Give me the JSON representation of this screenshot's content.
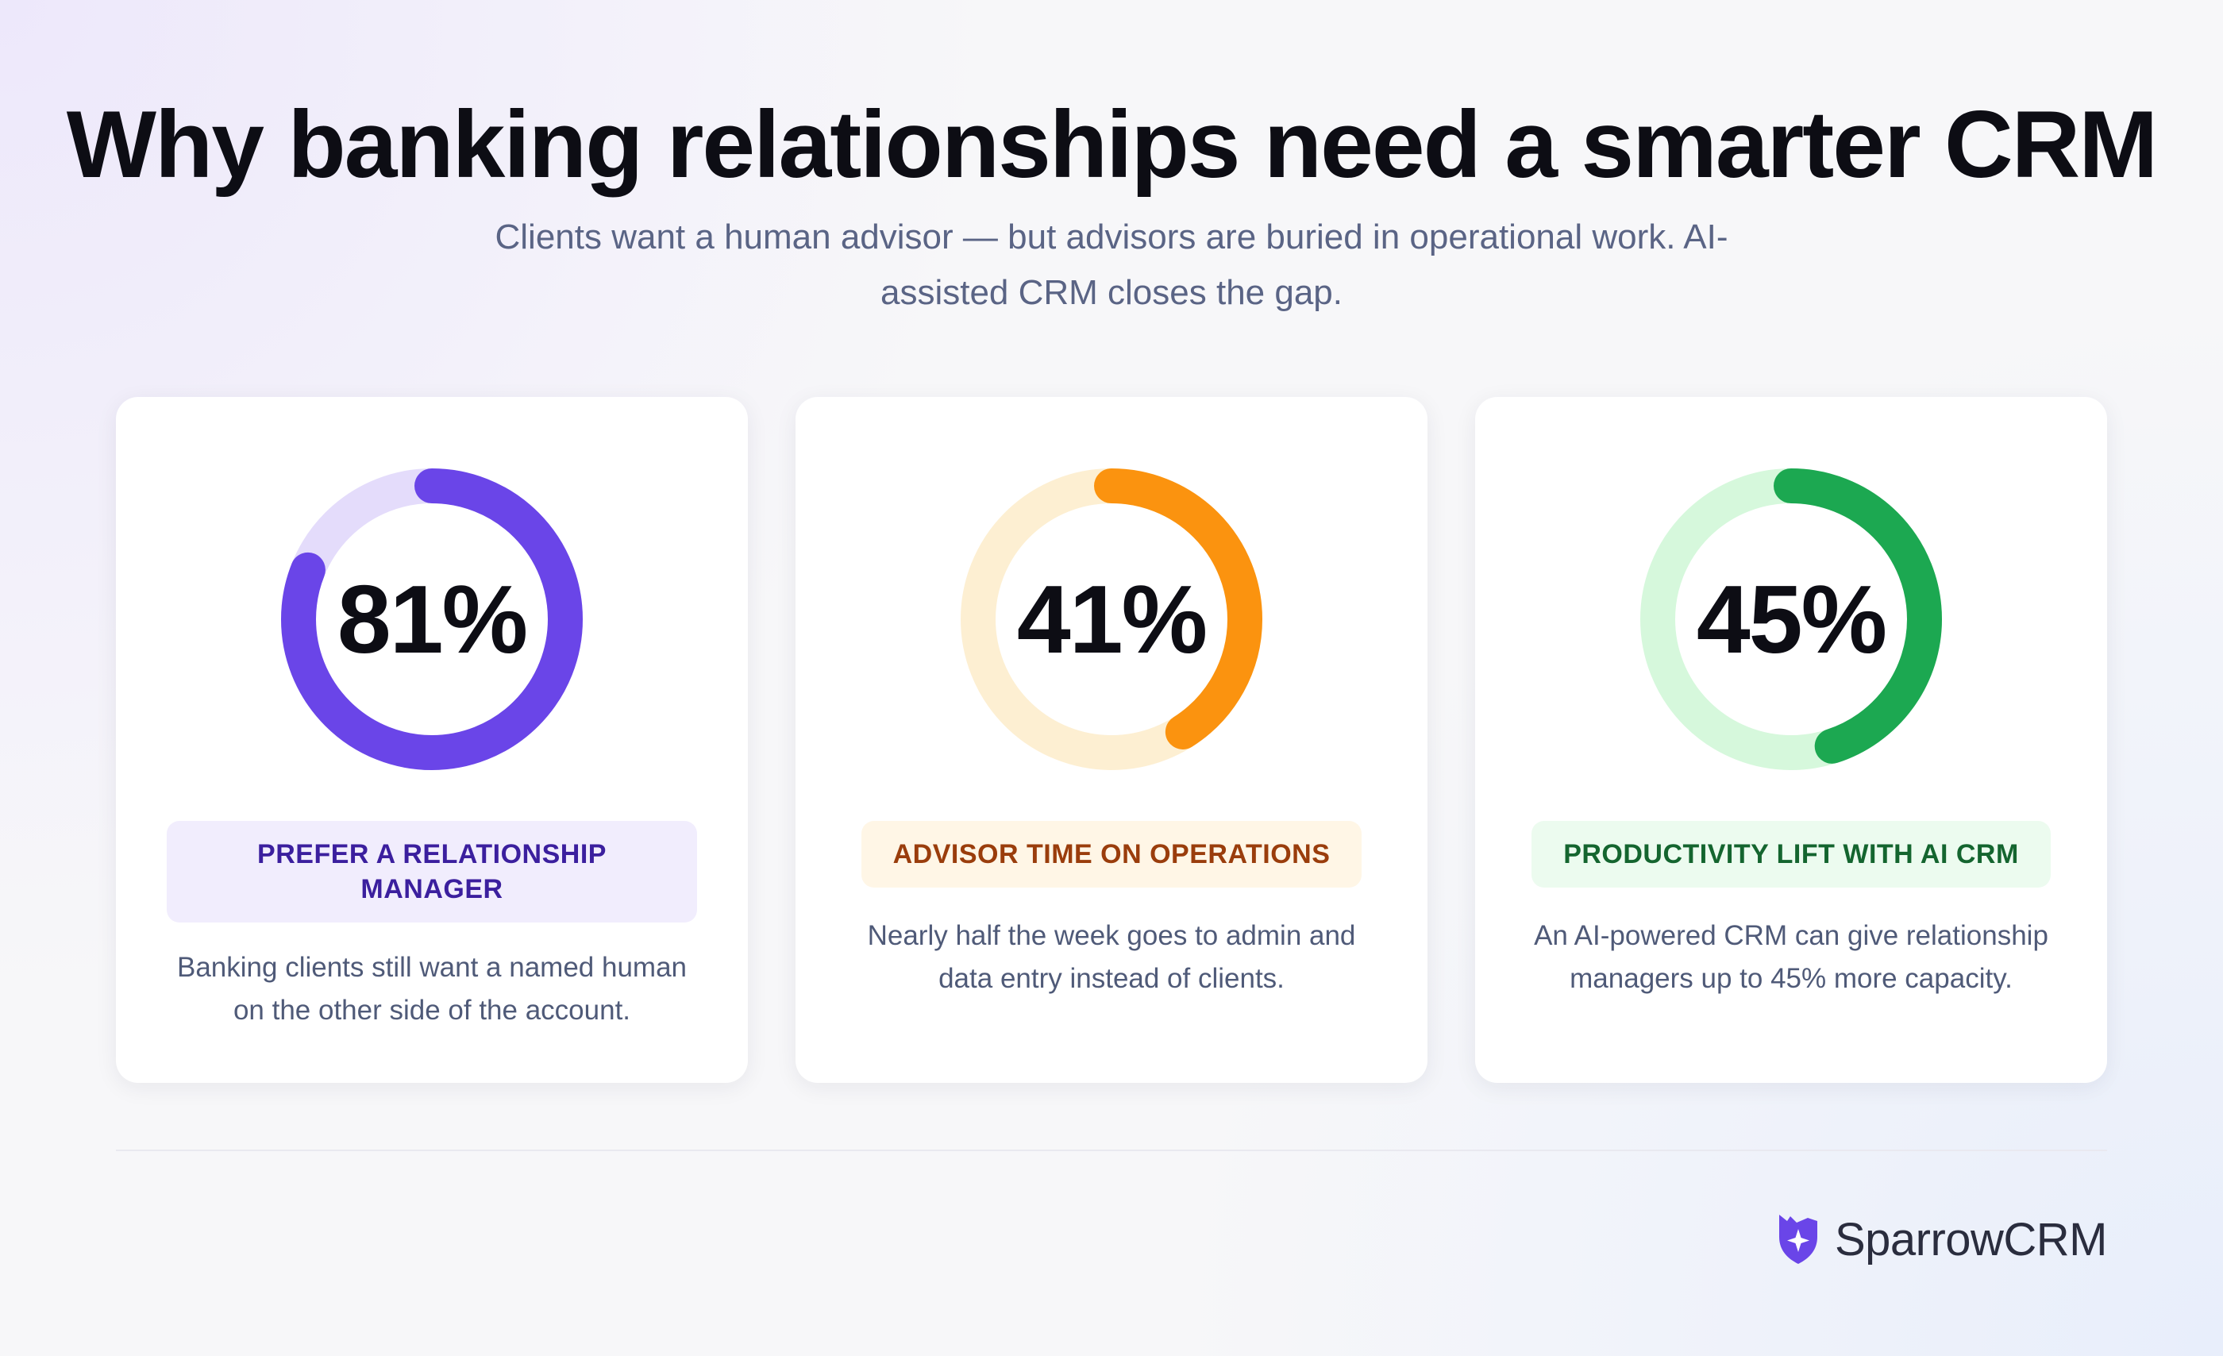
{
  "header": {
    "title": "Why banking relationships need a smarter CRM",
    "subtitle": "Clients want a human advisor — but advisors are buried in operational work. AI-assisted CRM closes the gap."
  },
  "chart_data": [
    {
      "type": "pie",
      "variant": "donut",
      "value_percent": 81,
      "value_label": "81%",
      "label": "PREFER A RELATIONSHIP MANAGER",
      "description": "Banking clients still want a named human on the other side of the account.",
      "colors": {
        "fill": "#6a45e8",
        "track": "#e4dcfb"
      }
    },
    {
      "type": "pie",
      "variant": "donut",
      "value_percent": 41,
      "value_label": "41%",
      "label": "ADVISOR TIME ON OPERATIONS",
      "description": "Nearly half the week goes to admin and data entry instead of clients.",
      "colors": {
        "fill": "#fb930f",
        "track": "#fdefd2"
      }
    },
    {
      "type": "pie",
      "variant": "donut",
      "value_percent": 45,
      "value_label": "45%",
      "label": "PRODUCTIVITY LIFT WITH AI CRM",
      "description": "An AI-powered CRM can give relationship managers up to 45% more capacity.",
      "colors": {
        "fill": "#1ca851",
        "track": "#d6f8dc"
      }
    }
  ],
  "footer": {
    "brand_name": "SparrowCRM",
    "logo_icon": "sparrow-shield-icon",
    "logo_color": "#6a45e8"
  }
}
